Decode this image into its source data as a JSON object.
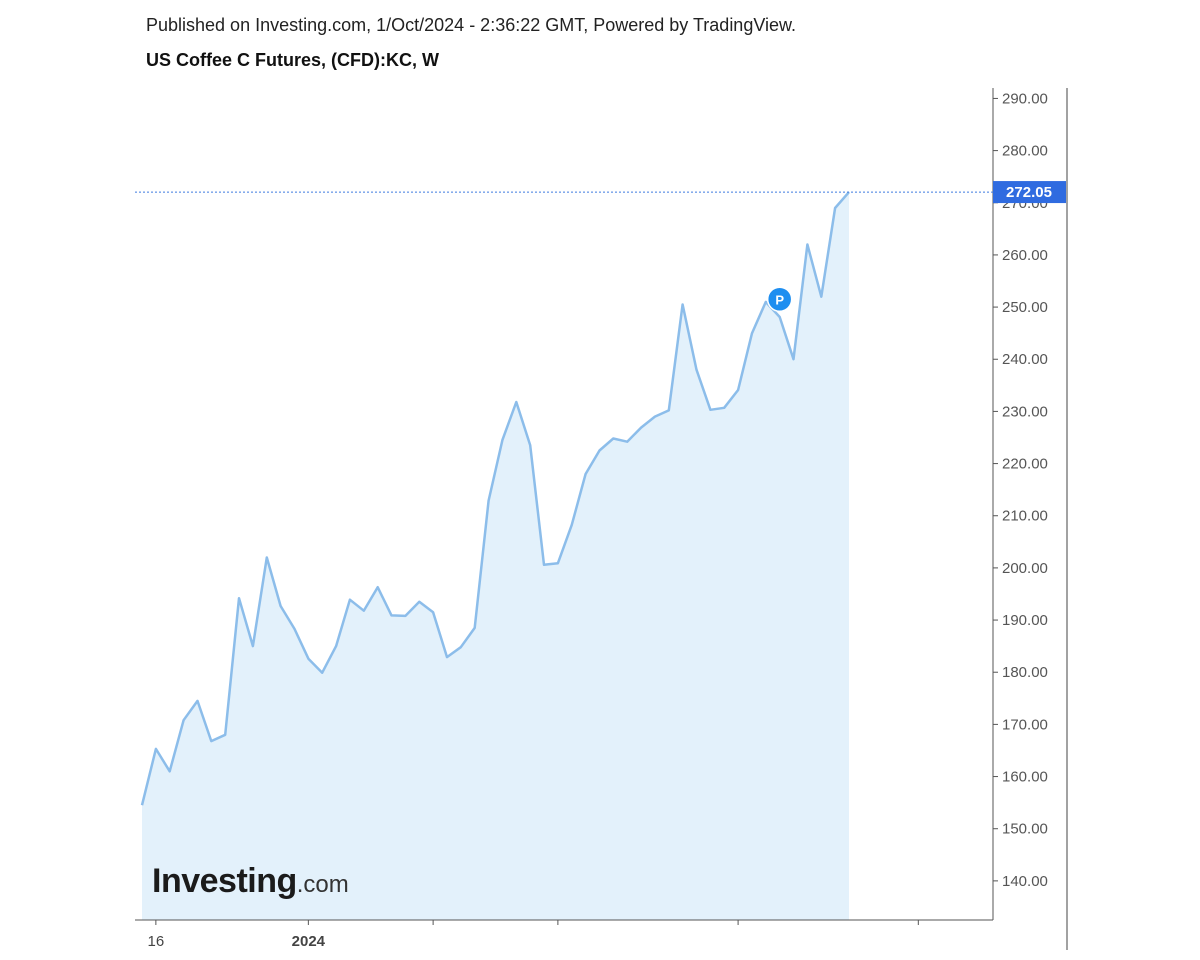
{
  "header": {
    "published": "Published on Investing.com, 1/Oct/2024 - 2:36:22 GMT, Powered by TradingView.",
    "title": "US Coffee C Futures, (CFD):KC, W"
  },
  "branding": {
    "logo_main": "Investing",
    "logo_suffix": ".com"
  },
  "chart_data": {
    "type": "area",
    "title": "US Coffee C Futures, (CFD):KC, W",
    "ylim": [
      132.5,
      292.0
    ],
    "yticks": [
      "140.00",
      "150.00",
      "160.00",
      "170.00",
      "180.00",
      "190.00",
      "200.00",
      "210.00",
      "220.00",
      "230.00",
      "240.00",
      "250.00",
      "260.00",
      "270.00",
      "280.00",
      "290.00"
    ],
    "y_axis_position": "right",
    "xticks": [
      {
        "label": "16",
        "bold": false,
        "index": 1
      },
      {
        "label": "2024",
        "bold": true,
        "index": 12
      },
      {
        "label": "",
        "bold": false,
        "index": 21
      },
      {
        "label": "",
        "bold": false,
        "index": 30
      },
      {
        "label": "",
        "bold": false,
        "index": 43
      },
      {
        "label": "",
        "bold": false,
        "index": 56
      }
    ],
    "last_price": "272.05",
    "last_value": 272.05,
    "marker": {
      "label": "P",
      "index": 46,
      "value": 251.5
    },
    "colors": {
      "line": "#8cbdea",
      "fill": "#e3f1fb",
      "price_tag": "#2f6be0",
      "marker": "#1e8ef0",
      "price_line": "#3d7be0"
    },
    "series": [
      {
        "values": [
          154.5,
          165.3,
          161.0,
          170.8,
          174.5,
          166.8,
          168.0,
          194.2,
          185.0,
          202.0,
          192.7,
          188.3,
          182.6,
          179.9,
          185.0,
          193.9,
          191.8,
          196.3,
          190.9,
          190.8,
          193.5,
          191.5,
          182.9,
          184.8,
          188.5,
          212.9,
          224.5,
          231.8,
          223.5,
          200.6,
          200.9,
          208.2,
          218.0,
          222.5,
          224.8,
          224.2,
          226.9,
          229.0,
          230.2,
          250.5,
          238.0,
          230.3,
          230.7,
          234.1,
          245.0,
          251.0,
          248.1,
          240.0,
          262.0,
          252.0,
          269.0,
          272.05
        ]
      }
    ]
  }
}
